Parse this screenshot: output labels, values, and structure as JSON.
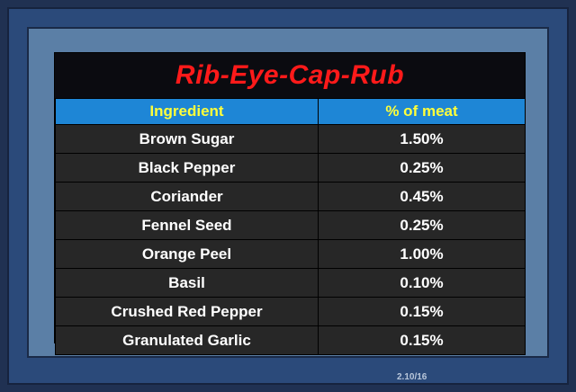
{
  "document": {
    "title": "Rib-Eye-Cap-Rub",
    "footer_note": "2.10/16"
  },
  "table": {
    "headers": [
      "Ingredient",
      "% of meat"
    ],
    "rows": [
      [
        "Brown Sugar",
        "1.50%"
      ],
      [
        "Black Pepper",
        "0.25%"
      ],
      [
        "Coriander",
        "0.45%"
      ],
      [
        "Fennel Seed",
        "0.25%"
      ],
      [
        "Orange Peel",
        "1.00%"
      ],
      [
        "Basil",
        "0.10%"
      ],
      [
        "Crushed Red Pepper",
        "0.15%"
      ],
      [
        "Granulated Garlic",
        "0.15%"
      ]
    ]
  },
  "colors": {
    "title_red": "#ff1a1a",
    "header_blue": "#1e86d6",
    "header_text_yellow": "#ffff3a",
    "row_dark": "#272727"
  }
}
